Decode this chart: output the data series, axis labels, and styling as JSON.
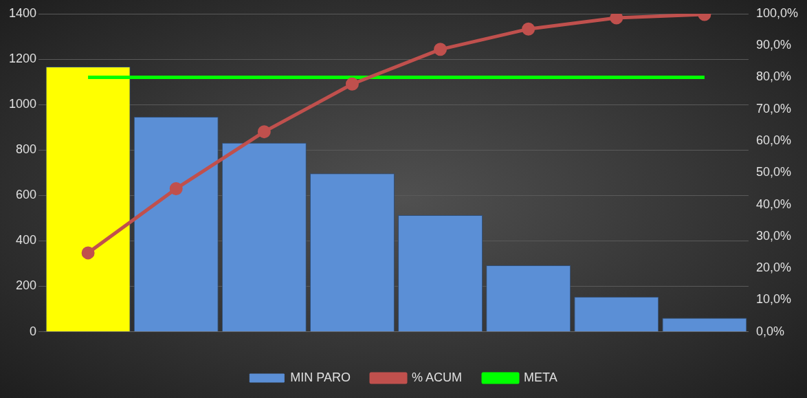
{
  "chart_data": {
    "type": "bar",
    "categories": [
      null,
      null,
      null,
      null,
      null,
      null,
      null,
      null
    ],
    "series": [
      {
        "name": "MIN PARO",
        "color": "#5b8fd6",
        "colors": [
          "#ffff00",
          "#5b8fd6",
          "#5b8fd6",
          "#5b8fd6",
          "#5b8fd6",
          "#5b8fd6",
          "#5b8fd6",
          "#5b8fd6"
        ],
        "values": [
          1167,
          946,
          832,
          697,
          513,
          292,
          154,
          61
        ]
      },
      {
        "name": "% ACUM",
        "type": "line",
        "axis": "y2",
        "color": "#c0504d",
        "marker": "circle",
        "values": [
          24.8,
          45.0,
          62.9,
          77.9,
          88.8,
          95.2,
          98.7,
          99.8
        ]
      },
      {
        "name": "META",
        "type": "line",
        "axis": "y2",
        "color": "#00ff00",
        "marker": "none",
        "values": [
          80,
          80,
          80,
          80,
          80,
          80,
          80,
          80
        ]
      }
    ],
    "ylim": [
      0,
      1400
    ],
    "yticks": [
      0,
      200,
      400,
      600,
      800,
      1000,
      1200,
      1400
    ],
    "y2lim": [
      0,
      100
    ],
    "y2ticks": [
      {
        "value": 0,
        "label": "0,0%"
      },
      {
        "value": 10,
        "label": "10,0%"
      },
      {
        "value": 20,
        "label": "20,0%"
      },
      {
        "value": 30,
        "label": "30,0%"
      },
      {
        "value": 40,
        "label": "40,0%"
      },
      {
        "value": 50,
        "label": "50,0%"
      },
      {
        "value": 60,
        "label": "60,0%"
      },
      {
        "value": 70,
        "label": "70,0%"
      },
      {
        "value": 80,
        "label": "80,0%"
      },
      {
        "value": 90,
        "label": "90,0%"
      },
      {
        "value": 100,
        "label": "100,0%"
      }
    ],
    "grid": "y",
    "legend": "bottom"
  }
}
